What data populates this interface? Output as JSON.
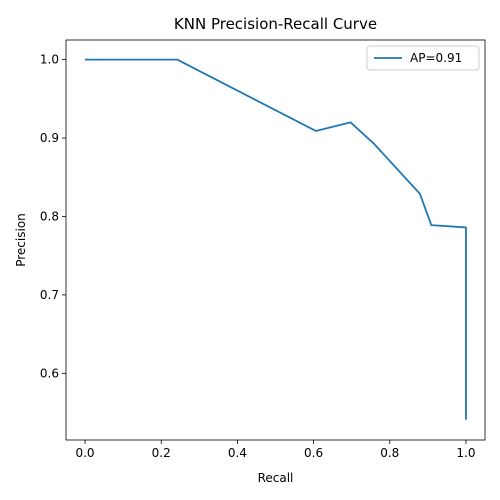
{
  "chart_data": {
    "type": "line",
    "title": "KNN Precision-Recall Curve",
    "xlabel": "Recall",
    "ylabel": "Precision",
    "xlim": [
      -0.05,
      1.05
    ],
    "ylim": [
      0.515,
      1.025
    ],
    "xticks": [
      0.0,
      0.2,
      0.4,
      0.6,
      0.8,
      1.0
    ],
    "xtick_labels": [
      "0.0",
      "0.2",
      "0.4",
      "0.6",
      "0.8",
      "1.0"
    ],
    "yticks": [
      0.6,
      0.7,
      0.8,
      0.9,
      1.0
    ],
    "ytick_labels": [
      "0.6",
      "0.7",
      "0.8",
      "0.9",
      "1.0"
    ],
    "grid": false,
    "legend": {
      "placement": "top-right"
    },
    "series": [
      {
        "name": "AP=0.91",
        "color": "#1f77b4",
        "x": [
          0.0,
          0.242,
          0.606,
          0.697,
          0.758,
          0.879,
          0.909,
          1.0,
          1.0
        ],
        "y": [
          1.0,
          1.0,
          0.909,
          0.92,
          0.893,
          0.829,
          0.789,
          0.786,
          0.541
        ]
      }
    ]
  }
}
